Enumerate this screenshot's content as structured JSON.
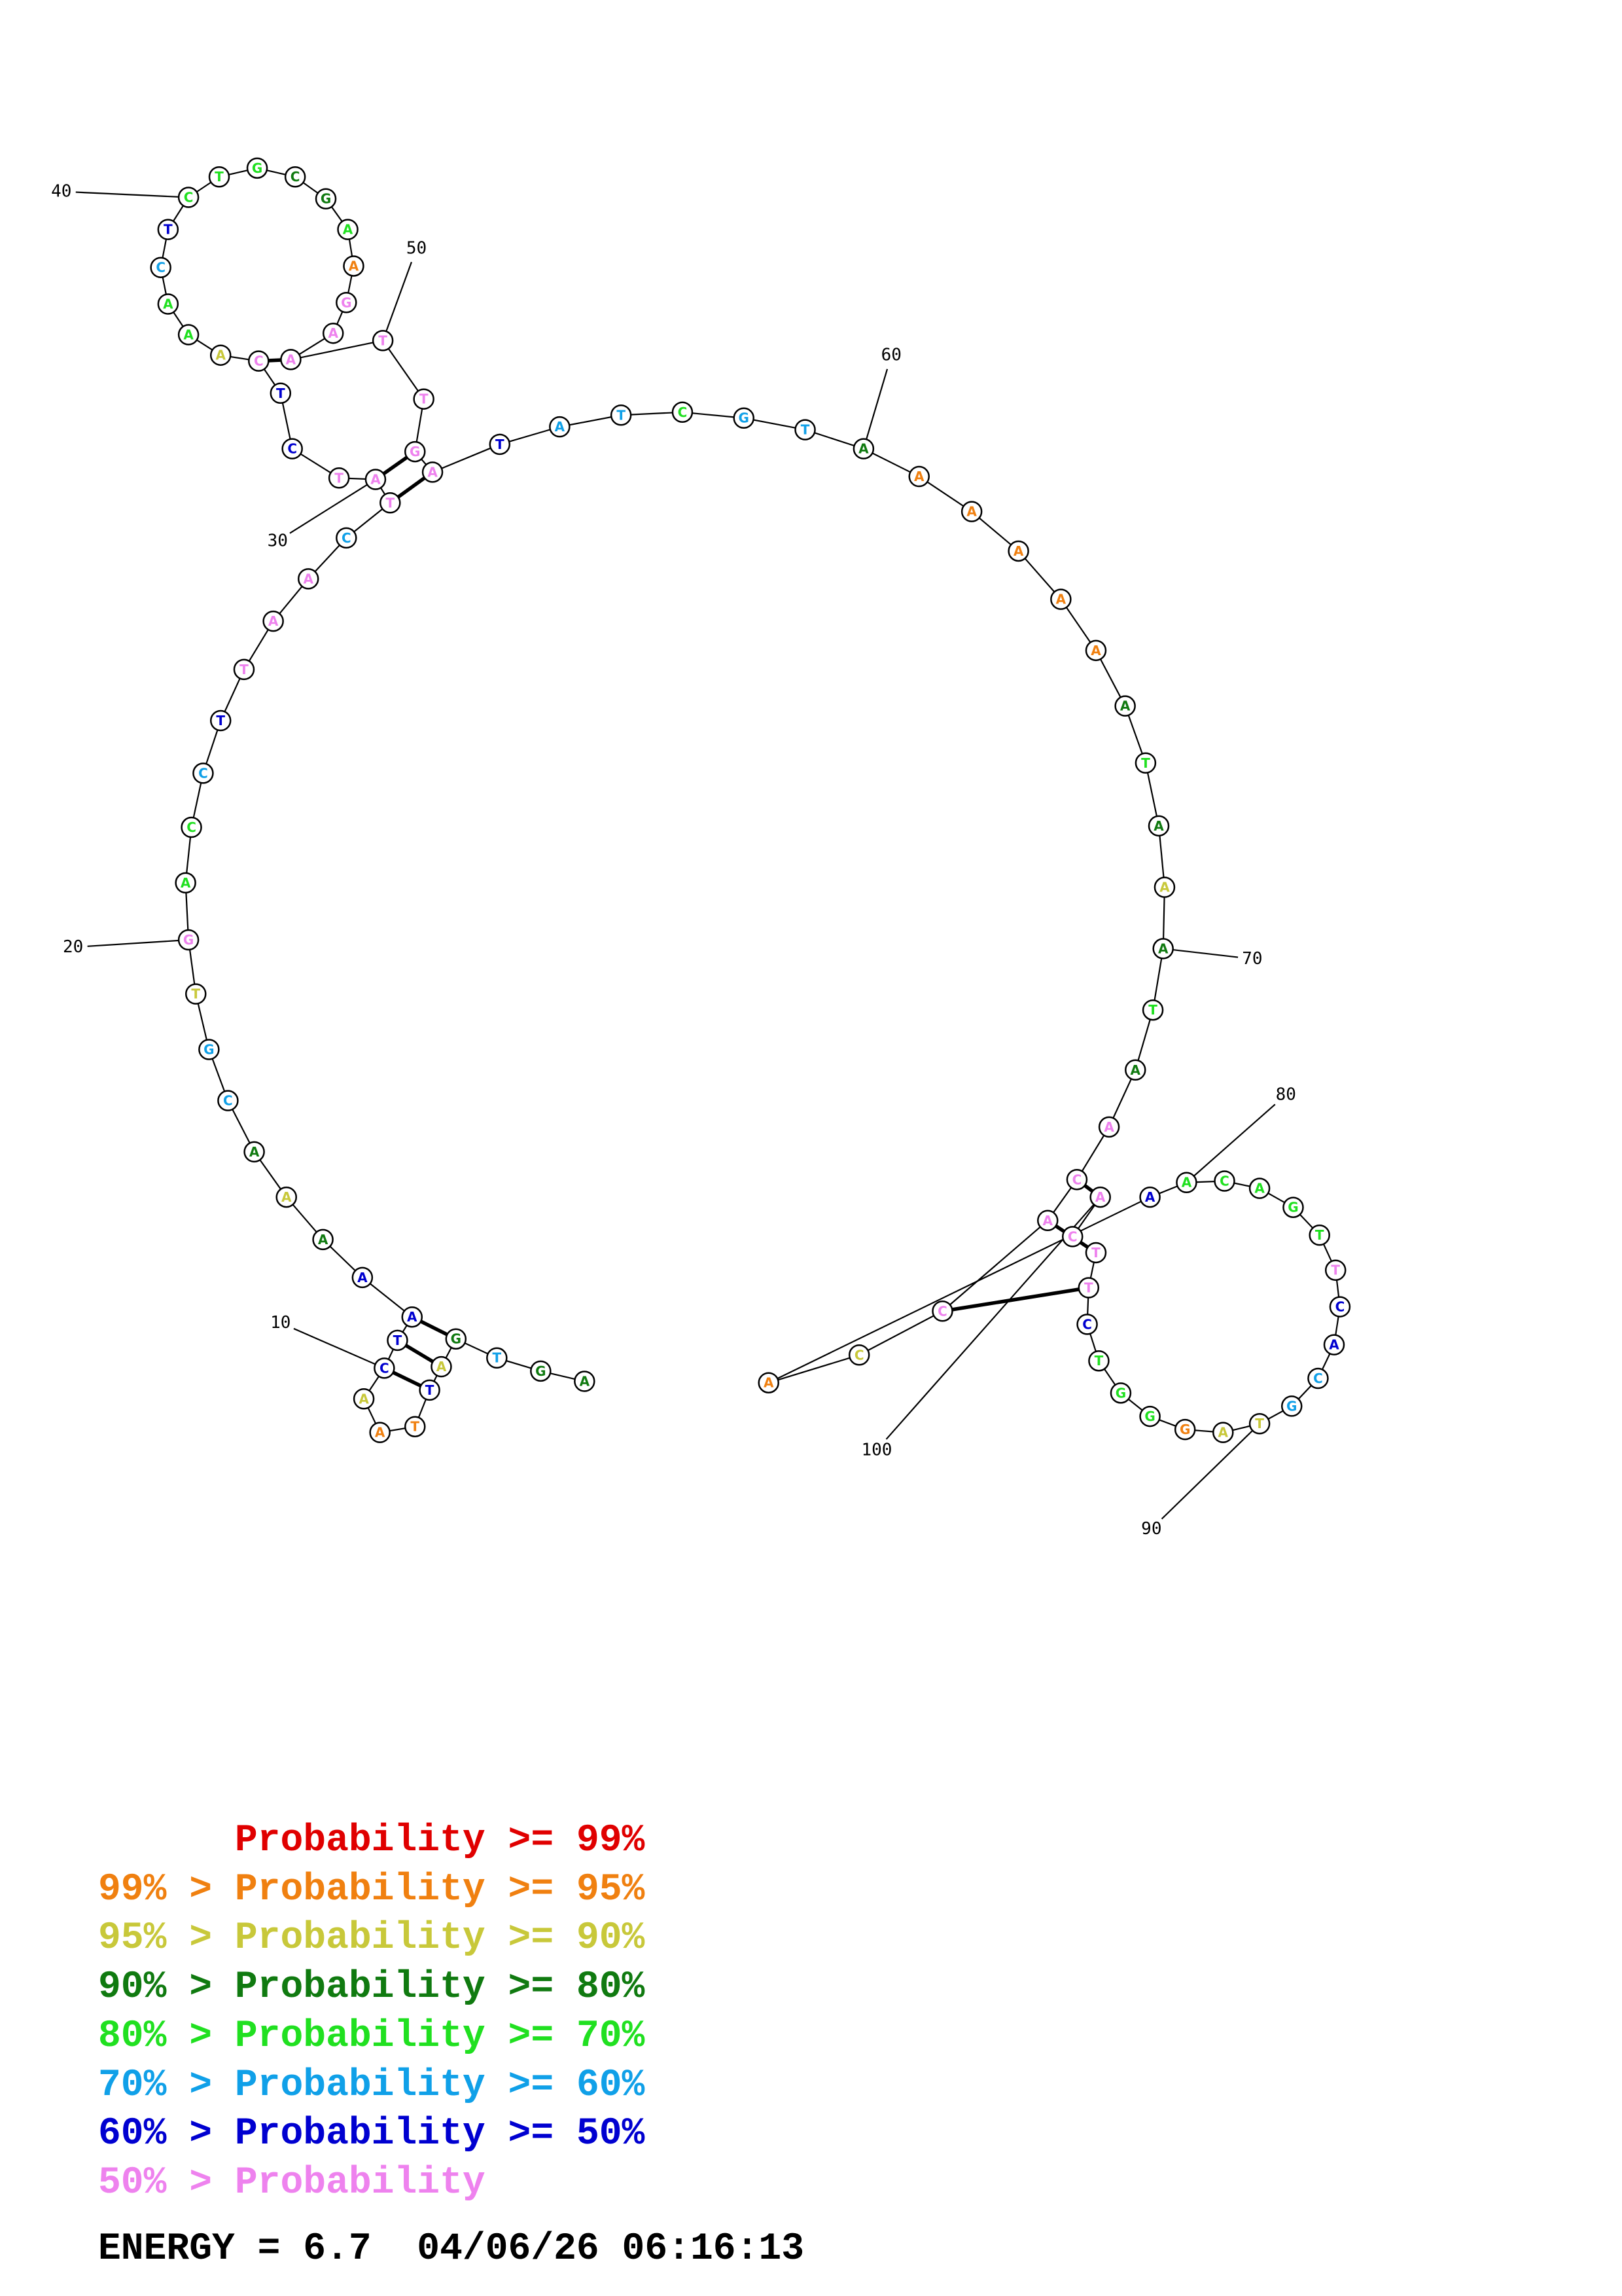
{
  "diagram": {
    "type": "RNA secondary structure",
    "sequence": "AGTGATTAACTAAAAACGTGACCTTAACTATCTCAAACTCTGCGAAGAATTGATATCGTAAAAAAATAAATAACACCAAACAGTTCACGTAGGGTCTTCA",
    "tick_labels": [
      "10",
      "20",
      "30",
      "40",
      "50",
      "60",
      "70",
      "80",
      "90",
      "100"
    ],
    "colors": {
      "p99": "#e00000",
      "p95": "#f08010",
      "p90": "#c8c83a",
      "p80": "#107a10",
      "p70": "#20e020",
      "p60": "#10a0e8",
      "p50": "#0000d0",
      "low": "#ee82ee"
    }
  },
  "legend": [
    {
      "prefix": "",
      "mid": "Probability >= ",
      "value": "99%",
      "color": "#e00000"
    },
    {
      "prefix": "99% > ",
      "mid": "Probability >= ",
      "value": "95%",
      "color": "#f08010"
    },
    {
      "prefix": "95% > ",
      "mid": "Probability >= ",
      "value": "90%",
      "color": "#c8c83a"
    },
    {
      "prefix": "90% > ",
      "mid": "Probability >= ",
      "value": "80%",
      "color": "#107a10"
    },
    {
      "prefix": "80% > ",
      "mid": "Probability >= ",
      "value": "70%",
      "color": "#20e020"
    },
    {
      "prefix": "70% > ",
      "mid": "Probability >= ",
      "value": "60%",
      "color": "#10a0e8"
    },
    {
      "prefix": "60% > ",
      "mid": "Probability >= ",
      "value": "50%",
      "color": "#0000d0"
    },
    {
      "prefix": "50% > ",
      "mid": "Probability",
      "value": "",
      "color": "#ee82ee"
    }
  ],
  "energy": {
    "text": "ENERGY = 6.7",
    "timestamp": "04/06/26 06:16:13"
  }
}
